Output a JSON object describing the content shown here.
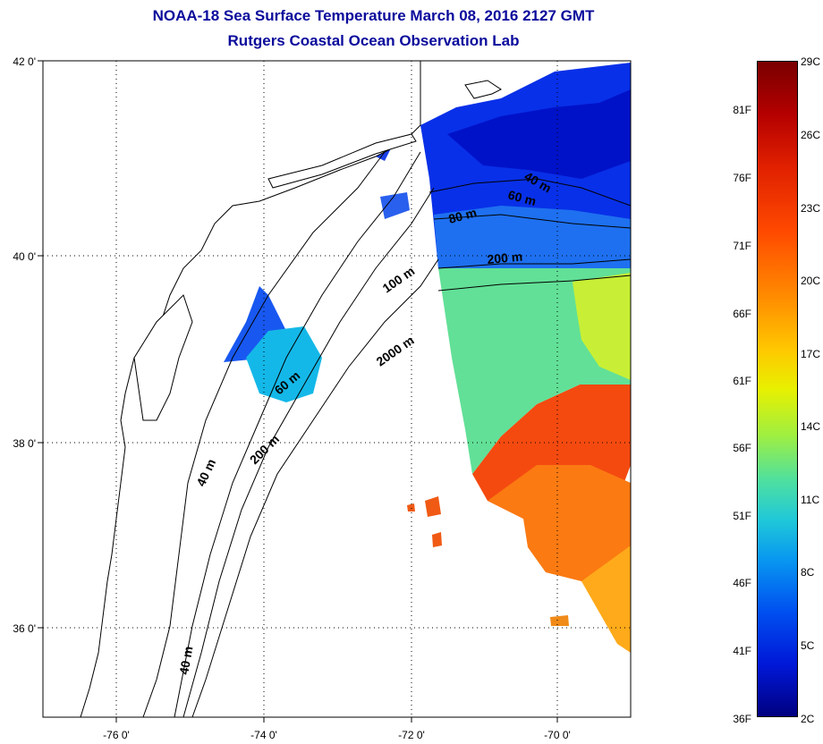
{
  "title": "NOAA-18 Sea Surface Temperature March 08, 2016 2127 GMT",
  "subtitle": "Rutgers Coastal Ocean Observation Lab",
  "lat_ticks": [
    "42 0'",
    "40 0'",
    "38 0'",
    "36 0'"
  ],
  "lon_ticks": [
    "-76 0'",
    "-74 0'",
    "-72 0'",
    "-70 0'"
  ],
  "contour_labels": [
    "40 m",
    "60 m",
    "80 m",
    "200 m",
    "100 m",
    "2000 m",
    "60 m",
    "200 m",
    "40 m",
    "40 m"
  ],
  "colorbar": {
    "fahrenheit": [
      "81F",
      "76F",
      "71F",
      "66F",
      "61F",
      "56F",
      "51F",
      "46F",
      "41F",
      "36F"
    ],
    "celsius": [
      "29C",
      "26C",
      "23C",
      "20C",
      "17C",
      "14C",
      "11C",
      "8C",
      "5C",
      "2C"
    ],
    "colors": [
      "#7a0000",
      "#e02000",
      "#ff8c00",
      "#e8f000",
      "#4ee0a0",
      "#0898f0",
      "#0018d8",
      "#000080"
    ]
  }
}
